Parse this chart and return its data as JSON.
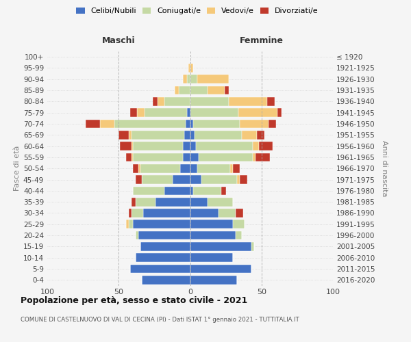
{
  "age_groups": [
    "0-4",
    "5-9",
    "10-14",
    "15-19",
    "20-24",
    "25-29",
    "30-34",
    "35-39",
    "40-44",
    "45-49",
    "50-54",
    "55-59",
    "60-64",
    "65-69",
    "70-74",
    "75-79",
    "80-84",
    "85-89",
    "90-94",
    "95-99",
    "100+"
  ],
  "birth_years": [
    "2016-2020",
    "2011-2015",
    "2006-2010",
    "2001-2005",
    "1996-2000",
    "1991-1995",
    "1986-1990",
    "1981-1985",
    "1976-1980",
    "1971-1975",
    "1966-1970",
    "1961-1965",
    "1956-1960",
    "1951-1955",
    "1946-1950",
    "1941-1945",
    "1936-1940",
    "1931-1935",
    "1926-1930",
    "1921-1925",
    "≤ 1920"
  ],
  "colors": {
    "celibe": "#4472c4",
    "coniugato": "#c5d9a4",
    "vedovo": "#f5c97a",
    "divorziato": "#c0392b"
  },
  "maschi": {
    "celibe": [
      34,
      42,
      38,
      35,
      36,
      40,
      33,
      24,
      18,
      12,
      7,
      5,
      5,
      4,
      3,
      2,
      0,
      0,
      0,
      0,
      0
    ],
    "coniugato": [
      0,
      0,
      0,
      0,
      2,
      3,
      8,
      14,
      22,
      22,
      28,
      35,
      35,
      37,
      50,
      30,
      18,
      8,
      2,
      0,
      0
    ],
    "vedovo": [
      0,
      0,
      0,
      0,
      0,
      2,
      0,
      0,
      0,
      0,
      1,
      1,
      1,
      2,
      10,
      5,
      5,
      3,
      3,
      1,
      0
    ],
    "divorziato": [
      0,
      0,
      0,
      0,
      0,
      0,
      2,
      3,
      0,
      4,
      4,
      4,
      8,
      7,
      10,
      5,
      3,
      0,
      0,
      0,
      0
    ]
  },
  "femmine": {
    "celibe": [
      33,
      43,
      30,
      43,
      32,
      30,
      20,
      12,
      2,
      8,
      5,
      6,
      4,
      3,
      2,
      0,
      0,
      0,
      0,
      0,
      0
    ],
    "coniugato": [
      0,
      0,
      0,
      2,
      4,
      8,
      12,
      18,
      20,
      25,
      23,
      38,
      40,
      33,
      33,
      34,
      27,
      12,
      5,
      0,
      0
    ],
    "vedovo": [
      0,
      0,
      0,
      0,
      0,
      0,
      0,
      0,
      0,
      2,
      2,
      2,
      4,
      11,
      20,
      27,
      27,
      12,
      22,
      2,
      0
    ],
    "divorziato": [
      0,
      0,
      0,
      0,
      0,
      0,
      5,
      0,
      3,
      5,
      5,
      10,
      10,
      5,
      5,
      3,
      5,
      3,
      0,
      0,
      0
    ]
  },
  "title1": "Popolazione per età, sesso e stato civile - 2021",
  "title2": "COMUNE DI CASTELNUOVO DI VAL DI CECINA (PI) - Dati ISTAT 1° gennaio 2021 - TUTTITALIA.IT",
  "xlabel_left": "Maschi",
  "xlabel_right": "Femmine",
  "ylabel_left": "Fasce di età",
  "ylabel_right": "Anni di nascita",
  "legend_labels": [
    "Celibi/Nubili",
    "Coniugati/e",
    "Vedovi/e",
    "Divorziati/e"
  ],
  "bg_color": "#f5f5f5",
  "grid_color": "#cccccc",
  "xlim": 100
}
